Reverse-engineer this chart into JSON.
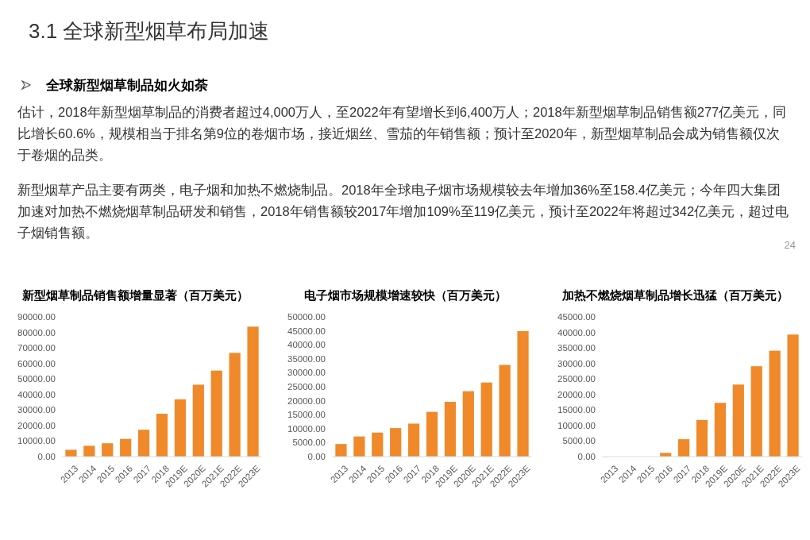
{
  "chart_data": [
    {
      "type": "other",
      "title": "3.1 全球新型烟草布局加速",
      "subtitle": "全球新型烟草制品如火如荼",
      "annotations": [
        "估计，2018年新型烟草制品的消费者超过4,000万人，至2022年有望增长到6,400万人；2018年新型烟草制品销售额277亿美元，同比增长60.6%，规模相当于排名第9位的卷烟市场，接近烟丝、雪茄的年销售额；预计至2020年，新型烟草制品会成为销售额仅次于卷烟的品类。",
        "新型烟草产品主要有两类，电子烟和加热不燃烧制品。2018年全球电子烟市场规模较去年增加36%至158.4亿美元；今年四大集团加速对加热不燃烧烟草制品研发和销售，2018年销售额较2017年增加109%至119亿美元，预计至2022年将超过342亿美元，超过电子烟销售额。",
        "24"
      ]
    },
    {
      "type": "bar",
      "title": "新型烟草制品销售额增量显著（百万美元）",
      "color": "#f0892a",
      "categories": [
        "2013",
        "2014",
        "2015",
        "2016",
        "2017",
        "2018",
        "2019E",
        "2020E",
        "2021E",
        "2022E",
        "2023E"
      ],
      "values": [
        4400,
        7000,
        8600,
        11400,
        17300,
        27600,
        36900,
        46300,
        55400,
        66800,
        83700
      ],
      "ylim": [
        0,
        90000
      ],
      "yticks": [
        {
          "value": 0,
          "label": "0.00"
        },
        {
          "value": 10000,
          "label": "10000.00"
        },
        {
          "value": 20000,
          "label": "20000.00"
        },
        {
          "value": 30000,
          "label": "30000.00"
        },
        {
          "value": 40000,
          "label": "40000.00"
        },
        {
          "value": 50000,
          "label": "50000.00"
        },
        {
          "value": 60000,
          "label": "60000.00"
        },
        {
          "value": 70000,
          "label": "70000.00"
        },
        {
          "value": 80000,
          "label": "80000.00"
        },
        {
          "value": 90000,
          "label": "90000.00"
        }
      ]
    },
    {
      "type": "bar",
      "title": "电子烟市场规模增速较快（百万美元）",
      "color": "#f0892a",
      "categories": [
        "2013",
        "2014",
        "2015",
        "2016",
        "2017",
        "2018",
        "2019E",
        "2020E",
        "2021E",
        "2022E",
        "2023E"
      ],
      "values": [
        4500,
        7200,
        8600,
        10200,
        11800,
        16000,
        19600,
        23400,
        26500,
        32800,
        44900
      ],
      "ylim": [
        0,
        50000
      ],
      "yticks": [
        {
          "value": 0,
          "label": "0.00"
        },
        {
          "value": 5000,
          "label": "5000.00"
        },
        {
          "value": 10000,
          "label": "10000.00"
        },
        {
          "value": 15000,
          "label": "15000.00"
        },
        {
          "value": 20000,
          "label": "20000.00"
        },
        {
          "value": 25000,
          "label": "25000.00"
        },
        {
          "value": 30000,
          "label": "30000.00"
        },
        {
          "value": 35000,
          "label": "35000.00"
        },
        {
          "value": 40000,
          "label": "40000.00"
        },
        {
          "value": 45000,
          "label": "45000.00"
        },
        {
          "value": 50000,
          "label": "50000.00"
        }
      ]
    },
    {
      "type": "bar",
      "title": "加热不燃烧烟草制品增长迅猛（百万美元）",
      "color": "#f0892a",
      "categories": [
        "2013",
        "2014",
        "2015",
        "2016",
        "2017",
        "2018",
        "2019E",
        "2020E",
        "2021E",
        "2022E",
        "2023E"
      ],
      "values": [
        0,
        0,
        0,
        1200,
        5600,
        11800,
        17300,
        23200,
        29100,
        34100,
        39300
      ],
      "ylim": [
        0,
        45000
      ],
      "yticks": [
        {
          "value": 0,
          "label": "0.00"
        },
        {
          "value": 5000,
          "label": "5000.00"
        },
        {
          "value": 10000,
          "label": "10000.00"
        },
        {
          "value": 15000,
          "label": "15000.00"
        },
        {
          "value": 20000,
          "label": "20000.00"
        },
        {
          "value": 25000,
          "label": "25000.00"
        },
        {
          "value": 30000,
          "label": "30000.00"
        },
        {
          "value": 35000,
          "label": "35000.00"
        },
        {
          "value": 40000,
          "label": "40000.00"
        },
        {
          "value": 45000,
          "label": "45000.00"
        }
      ]
    }
  ]
}
